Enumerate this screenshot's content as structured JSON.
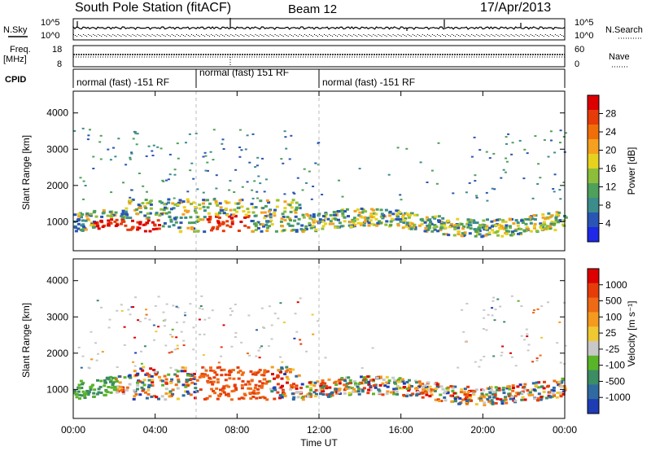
{
  "header": {
    "station": "South Pole Station (fitACF)",
    "beam": "Beam 12",
    "date": "17/Apr/2013"
  },
  "top_panels": {
    "nsky_label": "N.Sky",
    "nsearch_label": "N.Search",
    "freq_label_1": "Freq.",
    "freq_label_2": "[MHz]",
    "nave_label": "Nave",
    "cpid_label": "CPID",
    "left_ticks_noise": [
      "10^5",
      "10^0"
    ],
    "right_ticks_noise": [
      "10^5",
      "10^0"
    ],
    "left_ticks_freq": [
      "18",
      "8"
    ],
    "right_ticks_nave": [
      "60",
      "0"
    ]
  },
  "cpid_segments": [
    {
      "label": "normal (fast) -151 RF",
      "start_hour": 0,
      "end_hour": 6
    },
    {
      "label": "normal (fast) 151 RF",
      "start_hour": 6,
      "end_hour": 12
    },
    {
      "label": "normal (fast) -151 RF",
      "start_hour": 12,
      "end_hour": 24
    }
  ],
  "chart_data": [
    {
      "type": "heatmap",
      "ylabel": "Slant Range [km]",
      "yticks": [
        "1000",
        "2000",
        "3000",
        "4000"
      ],
      "ylim": [
        200,
        4600
      ],
      "xlim": [
        0,
        24
      ],
      "colorbar": {
        "label": "Power [dB]",
        "ticks": [
          "4",
          "8",
          "12",
          "16",
          "20",
          "24",
          "28"
        ],
        "colors": [
          "#1e28e6",
          "#2a55b4",
          "#3c8c8c",
          "#4ea05a",
          "#8cbe3c",
          "#e6d21e",
          "#f5a01e",
          "#f06e0a",
          "#e63c0a",
          "#dc0000"
        ]
      }
    },
    {
      "type": "heatmap",
      "ylabel": "Slant Range [km]",
      "yticks": [
        "1000",
        "2000",
        "3000",
        "4000"
      ],
      "ylim": [
        200,
        4600
      ],
      "xlim": [
        0,
        24
      ],
      "colorbar": {
        "label": "Velocity [m s⁻¹]",
        "ticks": [
          "1000",
          "500",
          "100",
          "25",
          "-25",
          "-100",
          "-500",
          "-1000"
        ],
        "colors": [
          "#1e3cb4",
          "#2f6aa0",
          "#3c8c64",
          "#5ab428",
          "#c8c8c8",
          "#f0c832",
          "#f59a1e",
          "#ef6a14",
          "#e63c0a",
          "#dc0000"
        ]
      }
    }
  ],
  "xaxis": {
    "ticks": [
      "00:00",
      "04:00",
      "08:00",
      "12:00",
      "16:00",
      "20:00",
      "00:00"
    ],
    "label": "Time UT"
  }
}
